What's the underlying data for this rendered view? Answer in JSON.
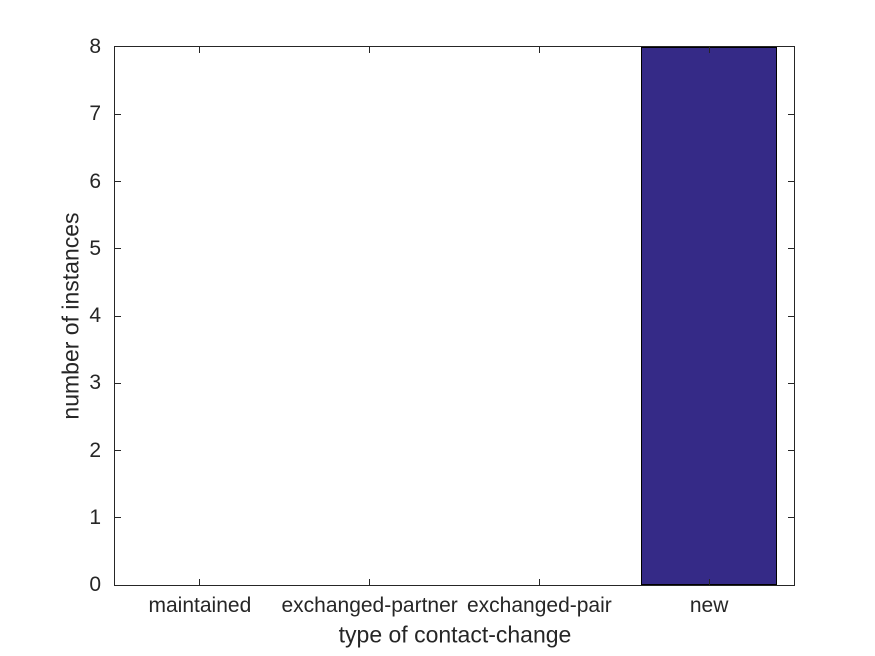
{
  "chart_data": {
    "type": "bar",
    "categories": [
      "maintained",
      "exchanged-partner",
      "exchanged-pair",
      "new"
    ],
    "values": [
      0,
      0,
      0,
      8
    ],
    "xlabel": "type of contact-change",
    "ylabel": "number of instances",
    "ylim": [
      0,
      8
    ],
    "yticks": [
      0,
      1,
      2,
      3,
      4,
      5,
      6,
      7,
      8
    ],
    "bar_width_fraction": 0.8,
    "bar_color": "#352A87",
    "bar_edge_color": "#000000",
    "axis_color": "#262626",
    "text_color": "#262626",
    "grid": false,
    "legend": "none",
    "tick_direction": "in"
  }
}
